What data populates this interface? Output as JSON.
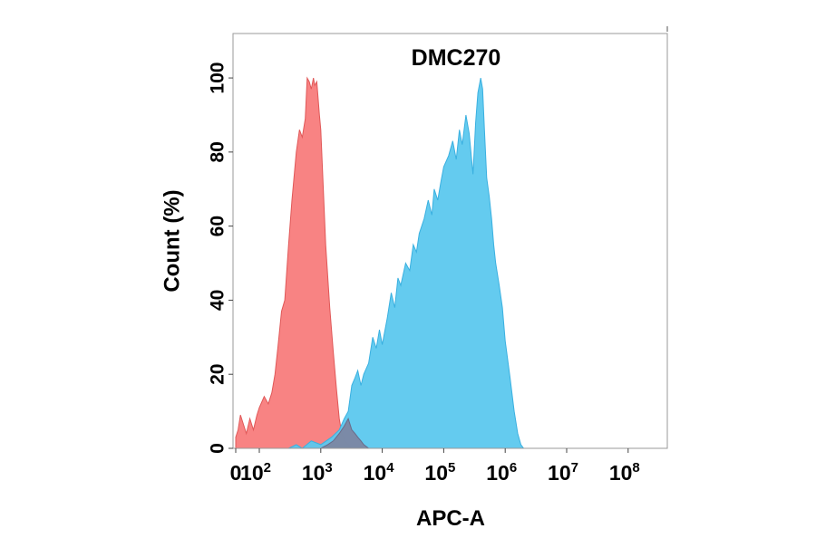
{
  "chart_data": {
    "type": "area",
    "title": "DMC270",
    "xlabel": "APC-A",
    "ylabel": "Count  (%)",
    "xscale": "biexponential",
    "xlim": [
      0,
      100000000
    ],
    "ylim": [
      0,
      112
    ],
    "x_ticks": [
      {
        "value": 0,
        "base": "0",
        "exp": ""
      },
      {
        "value": 100,
        "base": "10",
        "exp": "2"
      },
      {
        "value": 1000,
        "base": "10",
        "exp": "3"
      },
      {
        "value": 10000,
        "base": "10",
        "exp": "4"
      },
      {
        "value": 100000,
        "base": "10",
        "exp": "5"
      },
      {
        "value": 1000000,
        "base": "10",
        "exp": "6"
      },
      {
        "value": 10000000,
        "base": "10",
        "exp": "7"
      },
      {
        "value": 100000000,
        "base": "10",
        "exp": "8"
      }
    ],
    "y_ticks": [
      0,
      20,
      40,
      60,
      80,
      100
    ],
    "grid": false,
    "legend": "none",
    "series": [
      {
        "color": "#f87c7c",
        "stroke": "#e05858",
        "x": [
          0,
          10,
          20,
          30,
          45,
          60,
          75,
          90,
          100,
          120,
          140,
          160,
          180,
          200,
          230,
          260,
          300,
          340,
          400,
          450,
          500,
          560,
          600,
          650,
          700,
          760,
          800,
          860,
          900,
          950,
          1000,
          1100,
          1200,
          1400,
          1600,
          1800,
          2000,
          2200,
          2500,
          2800,
          3200
        ],
        "y": [
          3,
          5,
          9,
          7,
          4,
          8,
          5,
          9,
          11,
          14,
          12,
          15,
          20,
          27,
          37,
          40,
          55,
          67,
          80,
          86,
          84,
          89,
          100,
          99,
          97,
          100,
          98,
          99,
          95,
          90,
          86,
          70,
          55,
          38,
          26,
          16,
          8,
          4,
          2,
          1,
          0
        ]
      },
      {
        "color": "#5cc8ee",
        "stroke": "#3ab0e0",
        "x": [
          300,
          400,
          500,
          700,
          1000,
          1500,
          2000,
          2400,
          2800,
          3200,
          3600,
          4000,
          4500,
          5000,
          6000,
          7000,
          8000,
          9000,
          10000,
          12000,
          14000,
          16000,
          18000,
          20000,
          24000,
          28000,
          32000,
          36000,
          40000,
          48000,
          56000,
          64000,
          70000,
          80000,
          90000,
          100000,
          120000,
          140000,
          160000,
          180000,
          200000,
          230000,
          260000,
          300000,
          330000,
          360000,
          400000,
          430000,
          460000,
          500000,
          550000,
          600000,
          650000,
          700000,
          800000,
          900000,
          1000000,
          1200000,
          1400000,
          1600000,
          1800000,
          2000000,
          2200000
        ],
        "y": [
          0,
          1,
          0,
          2,
          1,
          3,
          5,
          8,
          10,
          17,
          19,
          21,
          17,
          20,
          23,
          30,
          27,
          32,
          28,
          35,
          42,
          38,
          46,
          44,
          50,
          48,
          55,
          53,
          58,
          62,
          67,
          63,
          70,
          67,
          72,
          76,
          79,
          83,
          78,
          86,
          82,
          90,
          85,
          74,
          88,
          96,
          100,
          97,
          86,
          73,
          68,
          62,
          55,
          50,
          44,
          38,
          29,
          19,
          10,
          4,
          1,
          0,
          0
        ]
      },
      {
        "color": "#7f7f9a",
        "stroke": "#6a6a88",
        "x": [
          1000,
          1300,
          1600,
          2000,
          2400,
          2800,
          3200,
          3600,
          4000,
          4500,
          5000,
          6000
        ],
        "y": [
          0,
          1,
          2,
          4,
          6,
          8,
          5,
          4,
          3,
          2,
          1,
          0
        ]
      }
    ]
  }
}
